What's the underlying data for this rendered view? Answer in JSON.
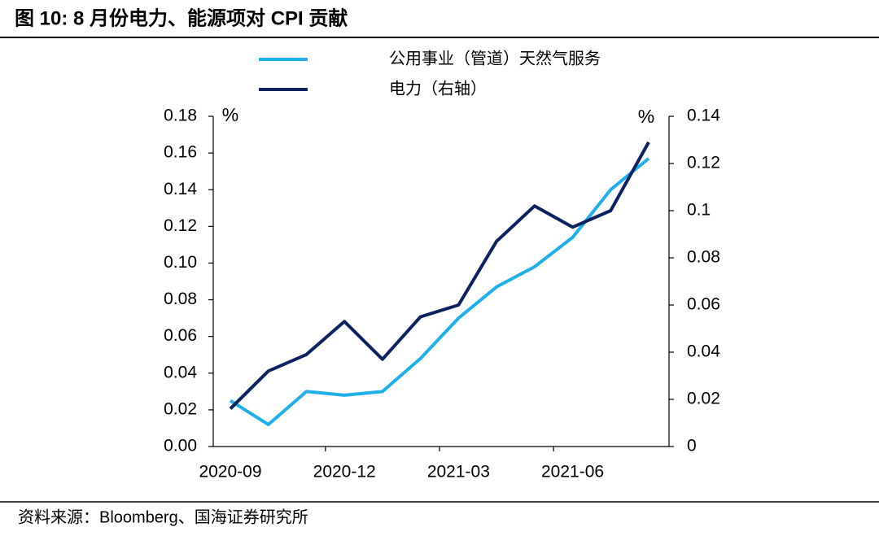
{
  "chart_data": {
    "type": "line",
    "title": "图 10: 8 月份电力、能源项对 CPI 贡献",
    "source": "资料来源：Bloomberg、国海证券研究所",
    "categories": [
      "2020-09",
      null,
      null,
      "2020-12",
      null,
      null,
      "2021-03",
      null,
      null,
      "2021-06",
      null,
      null
    ],
    "series": [
      {
        "name": "公用事业（管道）天然气服务",
        "color": "#1fb0ec",
        "axis": "y",
        "values": [
          0.025,
          0.012,
          0.03,
          0.028,
          0.03,
          0.048,
          0.07,
          0.087,
          0.098,
          0.114,
          0.14,
          0.157
        ]
      },
      {
        "name": "电力（右轴）",
        "color": "#0d2260",
        "axis": "y2",
        "values": [
          0.016,
          0.032,
          0.039,
          0.053,
          0.037,
          0.055,
          0.06,
          0.087,
          0.102,
          0.093,
          0.1,
          0.129
        ]
      }
    ],
    "ylabel": "%",
    "y2label": "%",
    "ylim": [
      0,
      0.18
    ],
    "yticks": [
      {
        "value": 0,
        "label": "0.00"
      },
      {
        "value": 0.02,
        "label": "0.02"
      },
      {
        "value": 0.04,
        "label": "0.04"
      },
      {
        "value": 0.06,
        "label": "0.06"
      },
      {
        "value": 0.08,
        "label": "0.08"
      },
      {
        "value": 0.1,
        "label": "0.10"
      },
      {
        "value": 0.12,
        "label": "0.12"
      },
      {
        "value": 0.14,
        "label": "0.14"
      },
      {
        "value": 0.16,
        "label": "0.16"
      },
      {
        "value": 0.18,
        "label": "0.18"
      }
    ],
    "y2lim": [
      0,
      0.14
    ],
    "y2ticks": [
      0,
      0.02,
      0.04,
      0.06,
      0.08,
      0.1,
      0.12,
      0.14
    ],
    "grid": false
  }
}
